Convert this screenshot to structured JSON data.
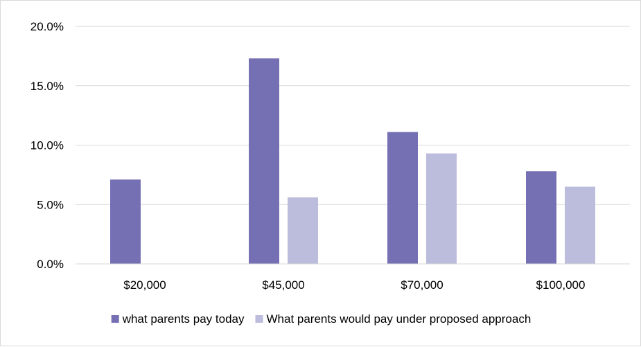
{
  "chart_data": {
    "type": "bar",
    "title": "",
    "xlabel": "",
    "ylabel": "",
    "categories": [
      "$20,000",
      "$45,000",
      "$70,000",
      "$100,000"
    ],
    "series": [
      {
        "name": "what parents pay today",
        "color": "#7570b3",
        "values": [
          7.1,
          17.3,
          11.1,
          7.8
        ]
      },
      {
        "name": "What parents would pay under proposed approach",
        "color": "#bcbddc",
        "values": [
          0.0,
          5.6,
          9.3,
          6.5
        ]
      }
    ],
    "ylim": [
      0,
      20
    ],
    "yticks": [
      0,
      5,
      10,
      15,
      20
    ],
    "ytick_labels": [
      "0.0%",
      "5.0%",
      "10.0%",
      "15.0%",
      "20.0%"
    ],
    "grid": true,
    "gridline_color": "#d9d9d9",
    "legend_position": "bottom"
  }
}
